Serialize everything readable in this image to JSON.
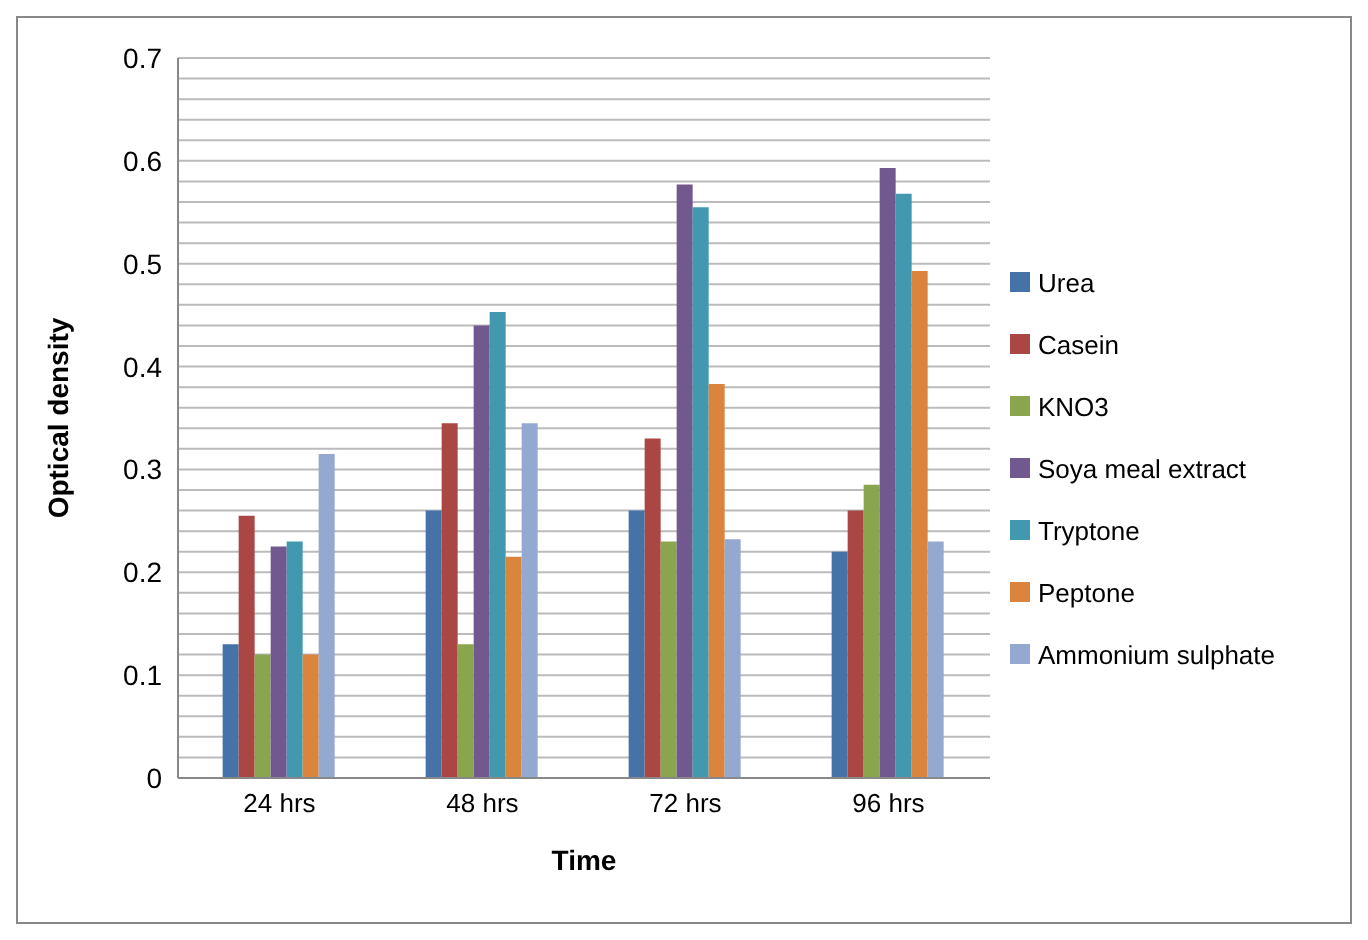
{
  "chart_data": {
    "type": "bar",
    "xlabel": "Time",
    "ylabel": "Optical density",
    "categories": [
      "24 hrs",
      "48 hrs",
      "72 hrs",
      "96 hrs"
    ],
    "series": [
      {
        "name": "Urea",
        "color": "#4572a7",
        "values": [
          0.13,
          0.26,
          0.26,
          0.22
        ]
      },
      {
        "name": "Casein",
        "color": "#aa4643",
        "values": [
          0.255,
          0.345,
          0.33,
          0.26
        ]
      },
      {
        "name": "KNO3",
        "color": "#89a54e",
        "values": [
          0.12,
          0.13,
          0.23,
          0.285
        ]
      },
      {
        "name": "Soya meal extract",
        "color": "#71588f",
        "values": [
          0.225,
          0.44,
          0.577,
          0.593
        ]
      },
      {
        "name": "Tryptone",
        "color": "#4198af",
        "values": [
          0.23,
          0.453,
          0.555,
          0.568
        ]
      },
      {
        "name": "Peptone",
        "color": "#db843d",
        "values": [
          0.12,
          0.215,
          0.383,
          0.493
        ]
      },
      {
        "name": "Ammonium sulphate",
        "color": "#93a9cf",
        "values": [
          0.315,
          0.345,
          0.232,
          0.23
        ]
      }
    ],
    "ylim": [
      0,
      0.7
    ],
    "yticks": [
      0,
      {
        "value": 0.02,
        "label": null
      },
      {
        "value": 0.04,
        "label": null
      },
      {
        "value": 0.06,
        "label": null
      },
      {
        "value": 0.08,
        "label": null
      },
      0.1,
      {
        "value": 0.12,
        "label": null
      },
      {
        "value": 0.14,
        "label": null
      },
      {
        "value": 0.16,
        "label": null
      },
      {
        "value": 0.18,
        "label": null
      },
      0.2,
      {
        "value": 0.22,
        "label": null
      },
      {
        "value": 0.24,
        "label": null
      },
      {
        "value": 0.26,
        "label": null
      },
      {
        "value": 0.28,
        "label": null
      },
      0.3,
      {
        "value": 0.32,
        "label": null
      },
      {
        "value": 0.34,
        "label": null
      },
      {
        "value": 0.36,
        "label": null
      },
      {
        "value": 0.38,
        "label": null
      },
      0.4,
      {
        "value": 0.42,
        "label": null
      },
      {
        "value": 0.44,
        "label": null
      },
      {
        "value": 0.46,
        "label": null
      },
      {
        "value": 0.48,
        "label": null
      },
      0.5,
      {
        "value": 0.52,
        "label": null
      },
      {
        "value": 0.54,
        "label": null
      },
      {
        "value": 0.56,
        "label": null
      },
      {
        "value": 0.58,
        "label": null
      },
      0.6,
      {
        "value": 0.62,
        "label": null
      },
      {
        "value": 0.64,
        "label": null
      },
      {
        "value": 0.66,
        "label": null
      },
      {
        "value": 0.68,
        "label": null
      },
      0.7
    ],
    "grid": true,
    "legend": "right"
  }
}
